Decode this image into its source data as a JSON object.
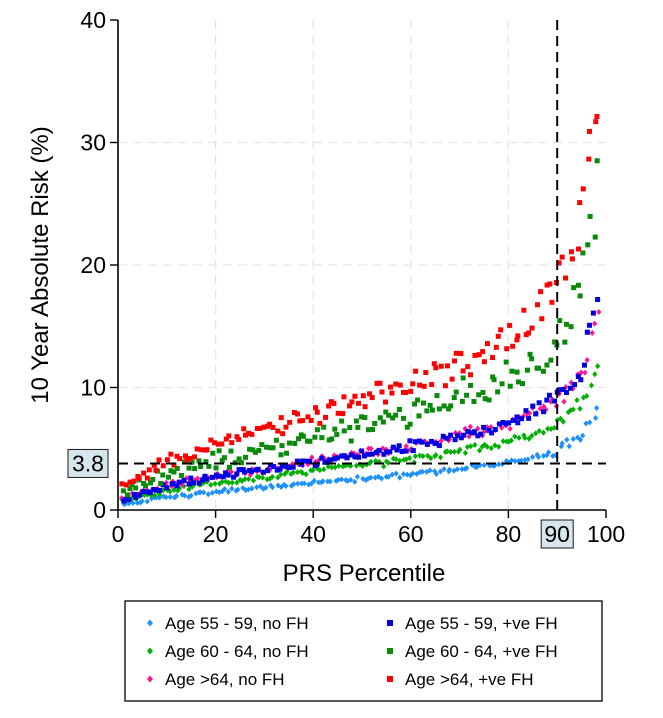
{
  "chart_data": {
    "type": "scatter",
    "xlabel": "PRS Percentile",
    "ylabel": "10 Year Absolute Risk (%)",
    "xlim": [
      0,
      100
    ],
    "ylim": [
      0,
      40
    ],
    "x_ticks": [
      "0",
      "20",
      "40",
      "60",
      "80",
      "100"
    ],
    "y_ticks": [
      "0",
      "10",
      "20",
      "30",
      "40"
    ],
    "grid": true,
    "legend_position": "bottom",
    "reference_lines": [
      {
        "axis": "x",
        "value": 90,
        "label": "90"
      },
      {
        "axis": "y",
        "value": 3.8,
        "label": "3.8"
      }
    ],
    "series": [
      {
        "name": "Age 55 - 59, no FH",
        "marker": "diamond",
        "color": "#1e90ff",
        "curve": [
          [
            1,
            0.4
          ],
          [
            10,
            1.0
          ],
          [
            20,
            1.4
          ],
          [
            30,
            1.8
          ],
          [
            40,
            2.2
          ],
          [
            50,
            2.5
          ],
          [
            60,
            2.9
          ],
          [
            70,
            3.3
          ],
          [
            80,
            3.8
          ],
          [
            90,
            4.7
          ],
          [
            95,
            6.0
          ],
          [
            99,
            9.0
          ]
        ],
        "spread": 0.45
      },
      {
        "name": "Age 60 - 64, no FH",
        "marker": "diamond",
        "color": "#00b000",
        "curve": [
          [
            1,
            0.7
          ],
          [
            10,
            1.5
          ],
          [
            20,
            2.1
          ],
          [
            30,
            2.6
          ],
          [
            40,
            3.1
          ],
          [
            50,
            3.6
          ],
          [
            60,
            4.1
          ],
          [
            70,
            4.7
          ],
          [
            80,
            5.5
          ],
          [
            90,
            6.8
          ],
          [
            95,
            8.5
          ],
          [
            99,
            12.5
          ]
        ],
        "spread": 0.55
      },
      {
        "name": "Age >64, no FH",
        "marker": "diamond",
        "color": "#ff1493",
        "curve": [
          [
            1,
            1.0
          ],
          [
            10,
            2.0
          ],
          [
            20,
            2.7
          ],
          [
            30,
            3.3
          ],
          [
            40,
            3.9
          ],
          [
            50,
            4.5
          ],
          [
            60,
            5.2
          ],
          [
            70,
            6.0
          ],
          [
            80,
            7.0
          ],
          [
            90,
            8.8
          ],
          [
            95,
            11.0
          ],
          [
            99,
            16.5
          ]
        ],
        "spread": 0.6
      },
      {
        "name": "Age 55 - 59, +ve FH",
        "marker": "square",
        "color": "#0000e0",
        "curve": [
          [
            1,
            0.8
          ],
          [
            10,
            1.9
          ],
          [
            20,
            2.6
          ],
          [
            30,
            3.2
          ],
          [
            40,
            3.8
          ],
          [
            50,
            4.4
          ],
          [
            60,
            5.1
          ],
          [
            70,
            5.9
          ],
          [
            80,
            7.0
          ],
          [
            90,
            9.0
          ],
          [
            95,
            11.5
          ],
          [
            99,
            18.0
          ]
        ],
        "spread": 0.7
      },
      {
        "name": "Age 60 - 64, +ve FH",
        "marker": "square",
        "color": "#0a8a0a",
        "curve": [
          [
            1,
            1.2
          ],
          [
            10,
            2.8
          ],
          [
            20,
            3.9
          ],
          [
            30,
            4.8
          ],
          [
            40,
            5.8
          ],
          [
            50,
            6.7
          ],
          [
            60,
            7.8
          ],
          [
            70,
            9.0
          ],
          [
            80,
            10.8
          ],
          [
            90,
            13.8
          ],
          [
            95,
            17.5
          ],
          [
            99,
            27.0
          ]
        ],
        "spread": 1.3
      },
      {
        "name": "Age >64, +ve FH",
        "marker": "square",
        "color": "#ff0000",
        "curve": [
          [
            1,
            1.8
          ],
          [
            10,
            3.8
          ],
          [
            20,
            5.2
          ],
          [
            30,
            6.4
          ],
          [
            40,
            7.6
          ],
          [
            50,
            8.8
          ],
          [
            60,
            10.1
          ],
          [
            70,
            11.7
          ],
          [
            80,
            14.0
          ],
          [
            90,
            18.0
          ],
          [
            95,
            23.0
          ],
          [
            99,
            35.0
          ]
        ],
        "spread": 1.0
      }
    ]
  }
}
